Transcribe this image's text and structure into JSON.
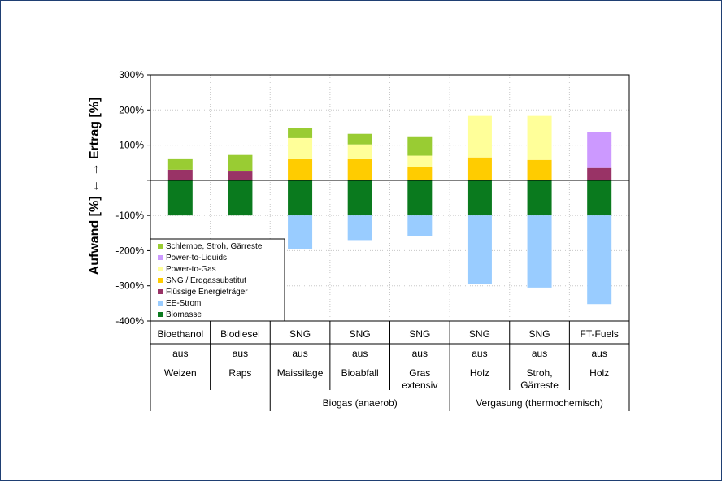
{
  "chart_data": {
    "type": "bar",
    "stacked": true,
    "ylabel": "Aufwand [%] ← → Ertrag [%]",
    "ylim": [
      -400,
      300
    ],
    "yticks": [
      300,
      200,
      100,
      0,
      -100,
      -200,
      -300,
      -400
    ],
    "ytick_labels": [
      "300%",
      "200%",
      "100%",
      "",
      "-100%",
      "-200%",
      "-300%",
      "-400%"
    ],
    "grid": true,
    "legend_position": "bottom-left",
    "categories": [
      {
        "lines": [
          "Bioethanol",
          "aus",
          "Weizen"
        ]
      },
      {
        "lines": [
          "Biodiesel",
          "aus",
          "Raps"
        ]
      },
      {
        "lines": [
          "SNG",
          "aus",
          "Maissilage"
        ]
      },
      {
        "lines": [
          "SNG",
          "aus",
          "Bioabfall"
        ]
      },
      {
        "lines": [
          "SNG",
          "aus",
          "Gras",
          "extensiv"
        ]
      },
      {
        "lines": [
          "SNG",
          "aus",
          "Holz"
        ]
      },
      {
        "lines": [
          "SNG",
          "aus",
          "Stroh,",
          "Gärreste"
        ]
      },
      {
        "lines": [
          "FT-Fuels",
          "aus",
          "Holz"
        ]
      }
    ],
    "groups": [
      {
        "label": "Biogas (anaerob)",
        "from": 2,
        "to": 4
      },
      {
        "label": "Vergasung (thermochemisch)",
        "from": 5,
        "to": 7
      }
    ],
    "series": [
      {
        "name": "Biomasse",
        "color": "#0a7a1e",
        "values": [
          -100,
          -100,
          -100,
          -100,
          -100,
          -100,
          -100,
          -100
        ]
      },
      {
        "name": "EE-Strom",
        "color": "#99ccff",
        "values": [
          0,
          0,
          -95,
          -70,
          -58,
          -195,
          -205,
          -252
        ]
      },
      {
        "name": "Flüssige Energieträger",
        "color": "#993366",
        "values": [
          30,
          25,
          0,
          0,
          0,
          0,
          0,
          35
        ]
      },
      {
        "name": "SNG / Erdgassubstitut",
        "color": "#ffcc00",
        "values": [
          0,
          0,
          60,
          60,
          37,
          65,
          58,
          0
        ]
      },
      {
        "name": "Power-to-Gas",
        "color": "#ffff99",
        "values": [
          0,
          0,
          60,
          42,
          33,
          118,
          125,
          0
        ]
      },
      {
        "name": "Power-to-Liquids",
        "color": "#cc99ff",
        "values": [
          0,
          0,
          0,
          0,
          0,
          0,
          0,
          103
        ]
      },
      {
        "name": "Schlempe, Stroh, Gärreste",
        "color": "#99cc33",
        "values": [
          30,
          47,
          28,
          30,
          55,
          0,
          0,
          0
        ]
      }
    ],
    "legend_order": [
      "Schlempe, Stroh, Gärreste",
      "Power-to-Liquids",
      "Power-to-Gas",
      "SNG / Erdgassubstitut",
      "Flüssige Energieträger",
      "EE-Strom",
      "Biomasse"
    ]
  }
}
